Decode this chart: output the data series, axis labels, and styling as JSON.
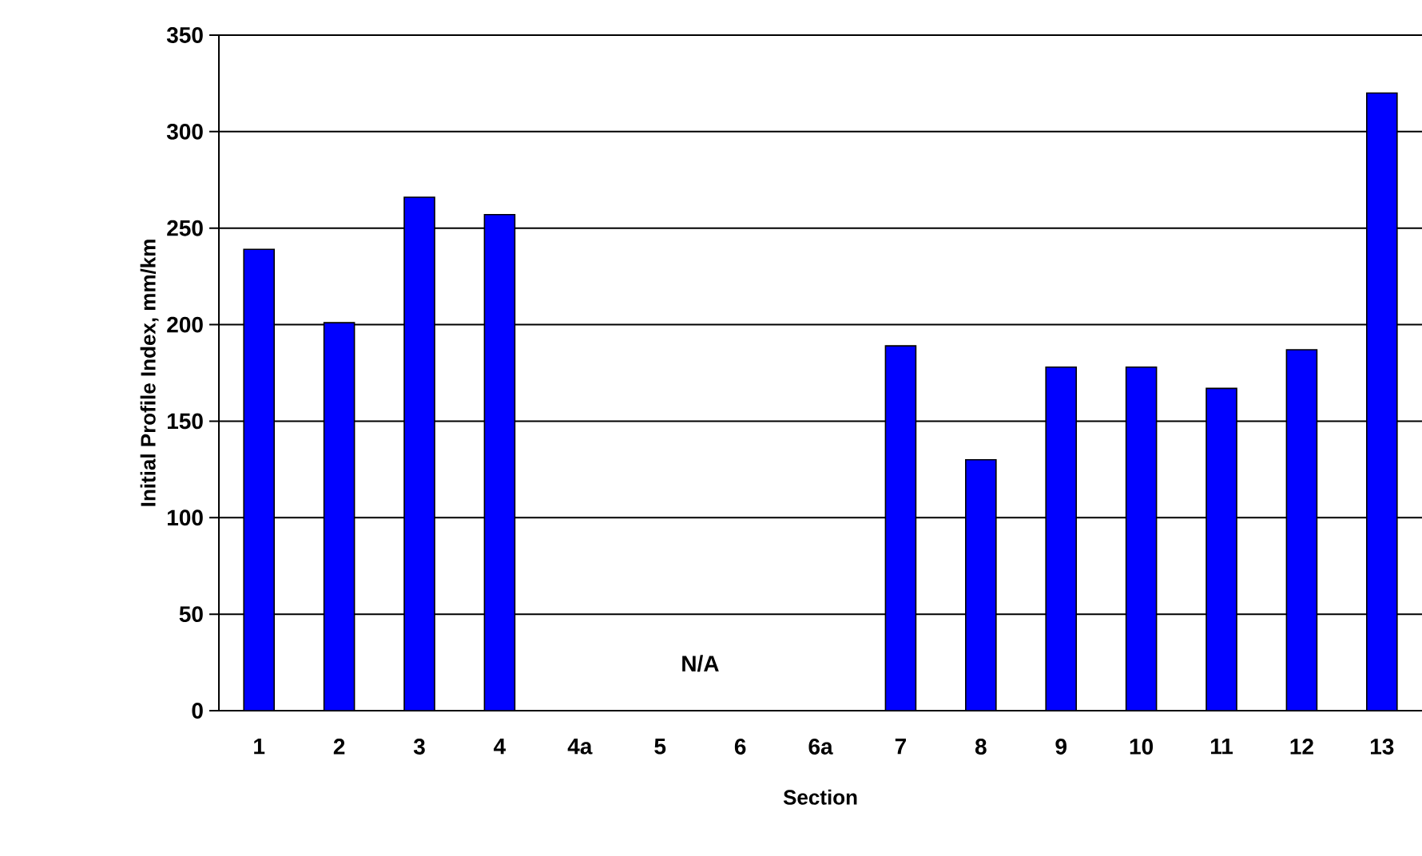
{
  "chart_data": {
    "type": "bar",
    "xlabel": "Section",
    "ylabel": "Initial Profile Index, mm/km",
    "categories": [
      "1",
      "2",
      "3",
      "4",
      "4a",
      "5",
      "6",
      "6a",
      "7",
      "8",
      "9",
      "10",
      "11",
      "12",
      "13"
    ],
    "values": [
      239,
      201,
      266,
      257,
      null,
      null,
      null,
      null,
      189,
      130,
      178,
      178,
      167,
      187,
      320
    ],
    "color": "#0000ff",
    "ylim": [
      0,
      350
    ],
    "yticks": [
      0,
      50,
      100,
      150,
      200,
      250,
      300,
      350
    ],
    "grid": "y",
    "annotations": [
      "N/A"
    ]
  }
}
